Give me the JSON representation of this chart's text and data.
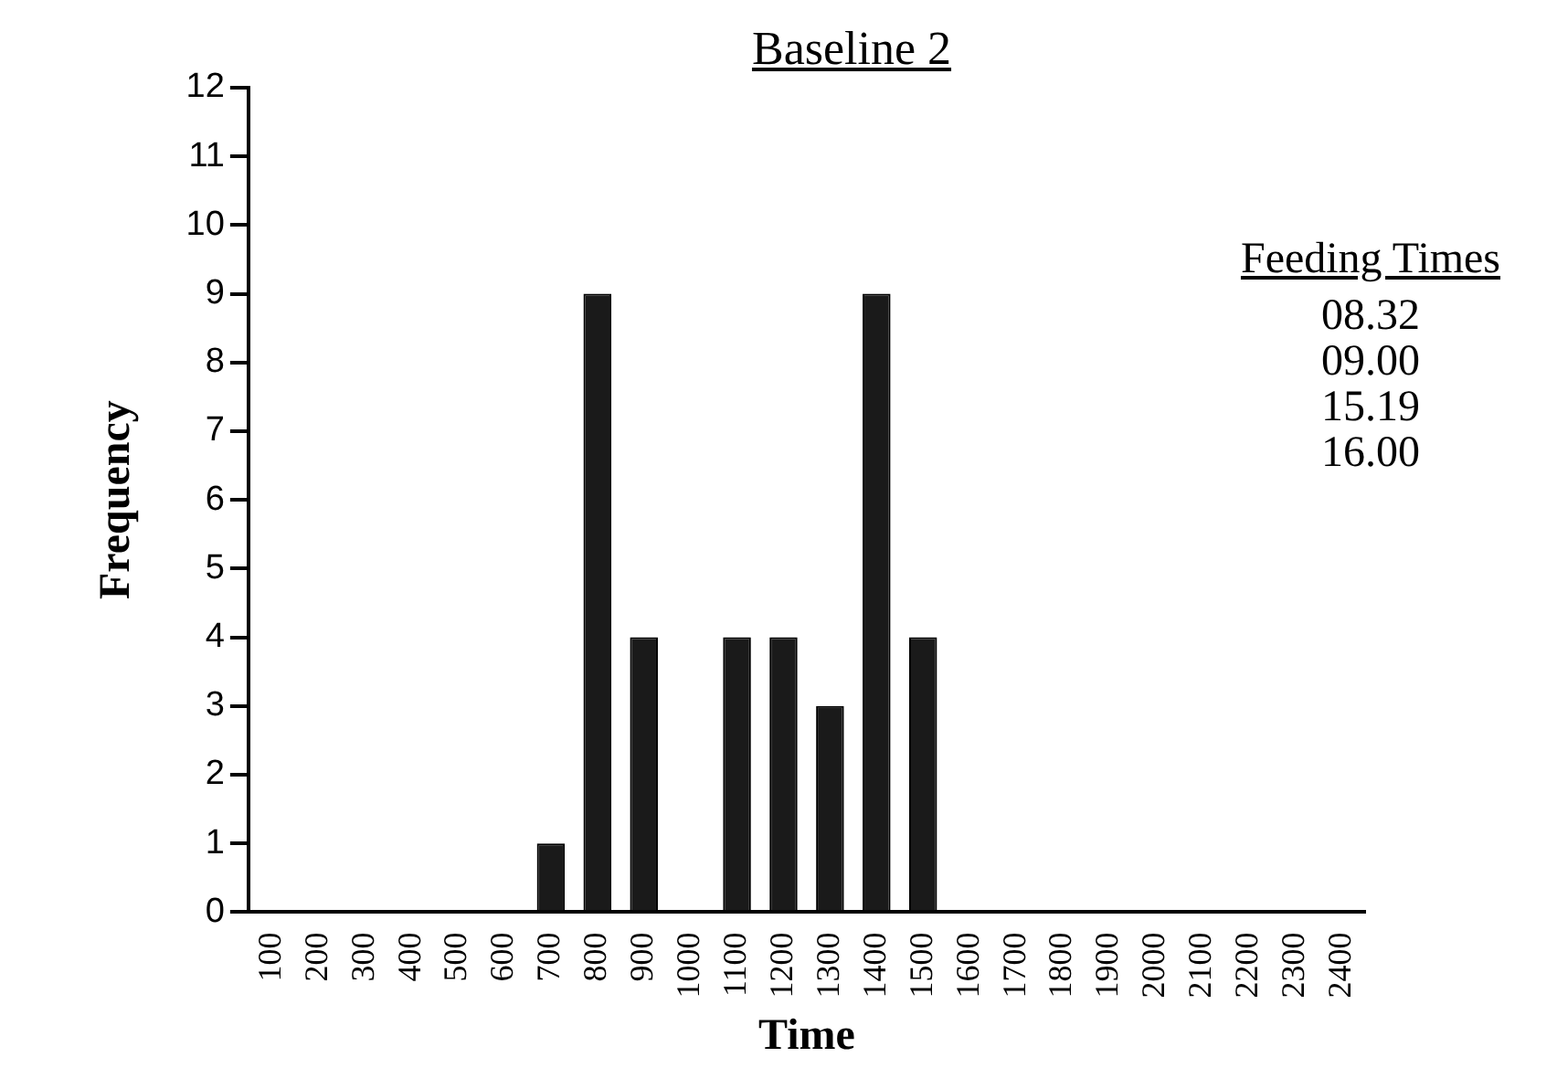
{
  "chart_data": {
    "type": "bar",
    "title": "Baseline  2",
    "xlabel": "Time",
    "ylabel": "Frequency",
    "categories": [
      "100",
      "200",
      "300",
      "400",
      "500",
      "600",
      "700",
      "800",
      "900",
      "1000",
      "1100",
      "1200",
      "1300",
      "1400",
      "1500",
      "1600",
      "1700",
      "1800",
      "1900",
      "2000",
      "2100",
      "2200",
      "2300",
      "2400"
    ],
    "values": [
      0,
      0,
      0,
      0,
      0,
      0,
      1,
      9,
      4,
      0,
      4,
      4,
      3,
      9,
      4,
      0,
      0,
      0,
      0,
      0,
      0,
      0,
      0,
      0
    ],
    "color": "#1a1a1a",
    "ylim": [
      0,
      12
    ],
    "yticks": [
      0,
      1,
      2,
      3,
      4,
      5,
      6,
      7,
      8,
      9,
      10,
      11,
      12
    ],
    "grid": false,
    "legend": false,
    "annotations": [
      "Feeding Times",
      "08.32",
      "09.00",
      "15.19",
      "16.00"
    ]
  }
}
